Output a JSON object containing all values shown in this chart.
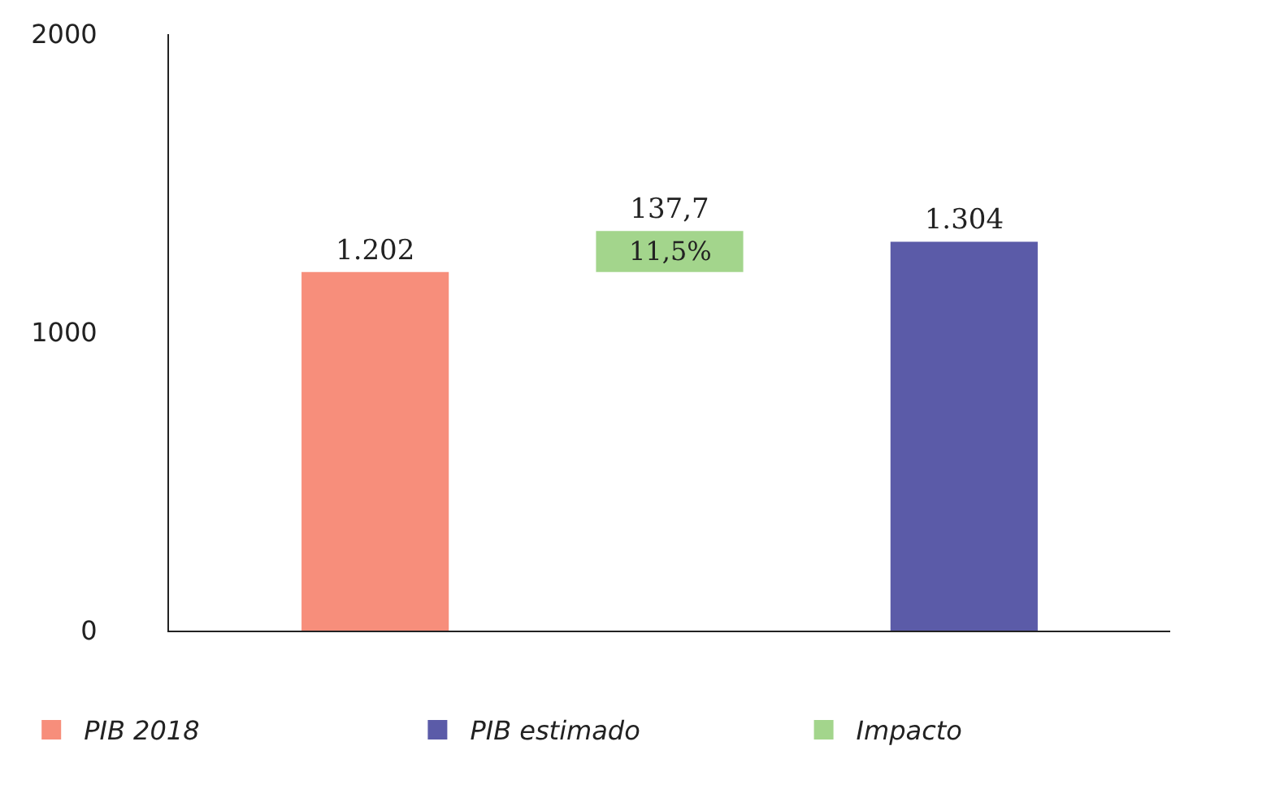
{
  "chart_data": {
    "type": "bar",
    "categories": [
      null,
      null,
      null
    ],
    "series": [
      {
        "name": "PIB 2018",
        "color": "#f78e7b",
        "values": [
          1202,
          null,
          null
        ],
        "value_labels": [
          "1.202",
          null,
          null
        ]
      },
      {
        "name": "PIB estimado",
        "color": "#5b5ba8",
        "values": [
          null,
          null,
          1304
        ],
        "value_labels": [
          null,
          null,
          "1.304"
        ]
      },
      {
        "name": "Impacto",
        "color": "#a3d58c",
        "values": [
          null,
          137.7,
          null
        ],
        "base": [
          null,
          1202,
          null
        ],
        "value_labels": [
          null,
          "137,7",
          null
        ]
      }
    ],
    "annotations": [
      "11,5%"
    ],
    "ylim": [
      0,
      2000
    ],
    "yticks": [
      0,
      1000,
      2000
    ],
    "legend": "bottom"
  }
}
